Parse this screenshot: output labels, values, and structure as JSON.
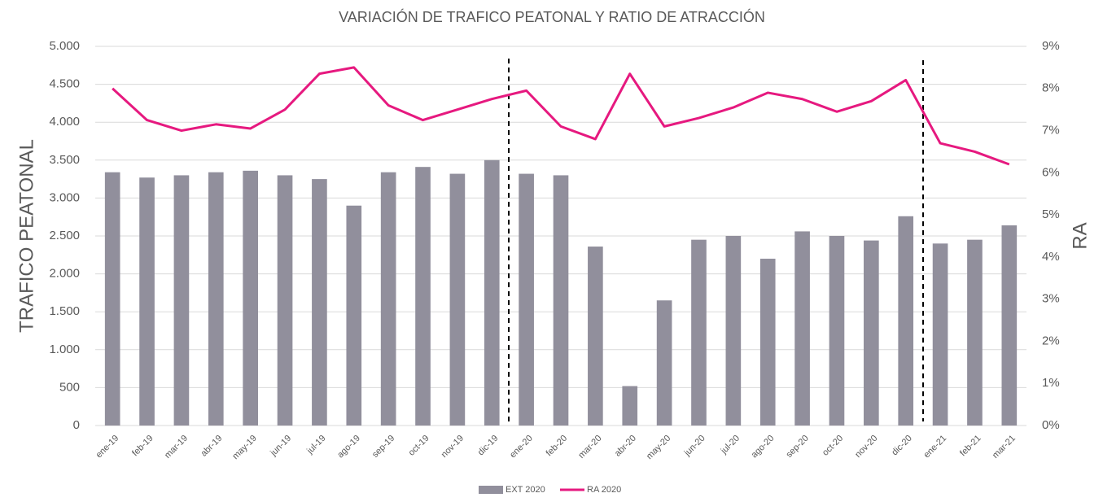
{
  "chart_data": {
    "type": "bar-line",
    "title": "VARIACIÓN DE TRAFICO PEATONAL Y RATIO DE ATRACCIÓN",
    "ylabel": "TRAFICO PEATONAL",
    "y2label": "RA",
    "categories": [
      "ene-19",
      "feb-19",
      "mar-19",
      "abr-19",
      "may-19",
      "jun-19",
      "jul-19",
      "ago-19",
      "sep-19",
      "oct-19",
      "nov-19",
      "dic-19",
      "ene-20",
      "feb-20",
      "mar-20",
      "abr-20",
      "may-20",
      "jun-20",
      "jul-20",
      "ago-20",
      "sep-20",
      "oct-20",
      "nov-20",
      "dic-20",
      "ene-21",
      "feb-21",
      "mar-21"
    ],
    "series": [
      {
        "name": "EXT 2020",
        "type": "bar",
        "color": "#918f9c",
        "axis": "y",
        "values": [
          3340,
          3270,
          3300,
          3340,
          3360,
          3300,
          3250,
          2900,
          3340,
          3410,
          3320,
          3500,
          3320,
          3300,
          2360,
          520,
          1650,
          2450,
          2500,
          2200,
          2560,
          2500,
          2440,
          2760,
          2400,
          2450,
          2640
        ]
      },
      {
        "name": "RA 2020",
        "type": "line",
        "color": "#e6197f",
        "axis": "y2",
        "values": [
          8.0,
          7.25,
          7.0,
          7.15,
          7.05,
          7.5,
          8.35,
          8.5,
          7.6,
          7.25,
          7.5,
          7.75,
          7.95,
          7.1,
          6.8,
          8.35,
          7.1,
          7.3,
          7.55,
          7.9,
          7.75,
          7.45,
          7.7,
          8.2,
          6.7,
          6.5,
          6.2
        ]
      }
    ],
    "ylim": [
      0,
      5000
    ],
    "yticks": [
      0,
      500,
      {
        "value": 1000,
        "label": "1.000"
      },
      {
        "value": 1500,
        "label": "1.500"
      },
      {
        "value": 2000,
        "label": "2.000"
      },
      {
        "value": 2500,
        "label": "2.500"
      },
      {
        "value": 3000,
        "label": "3.000"
      },
      {
        "value": 3500,
        "label": "3.500"
      },
      {
        "value": 4000,
        "label": "4.000"
      },
      {
        "value": 4500,
        "label": "4.500"
      },
      {
        "value": 5000,
        "label": "5.000"
      }
    ],
    "y2lim": [
      0,
      9
    ],
    "y2ticks": [
      {
        "value": 0,
        "label": "0%"
      },
      {
        "value": 1,
        "label": "1%"
      },
      {
        "value": 2,
        "label": "2%"
      },
      {
        "value": 3,
        "label": "3%"
      },
      {
        "value": 4,
        "label": "4%"
      },
      {
        "value": 5,
        "label": "5%"
      },
      {
        "value": 6,
        "label": "6%"
      },
      {
        "value": 7,
        "label": "7%"
      },
      {
        "value": 8,
        "label": "8%"
      },
      {
        "value": 9,
        "label": "9%"
      }
    ],
    "grid": true,
    "legend": "bottom"
  }
}
